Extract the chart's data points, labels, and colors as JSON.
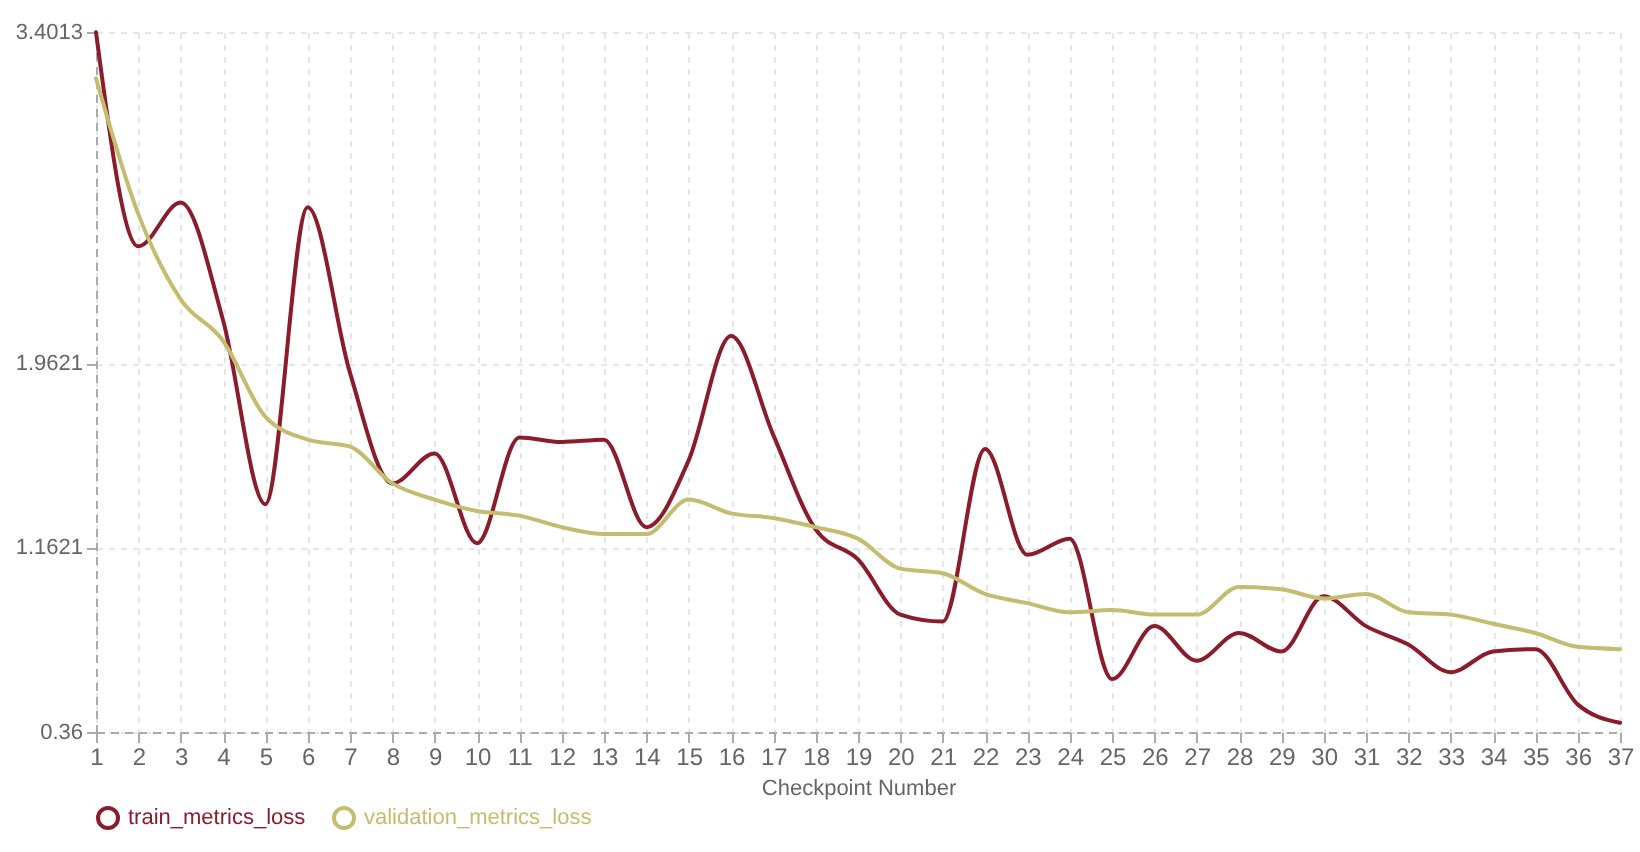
{
  "chart_data": {
    "type": "line",
    "xlabel": "Checkpoint Number",
    "x": [
      1,
      2,
      3,
      4,
      5,
      6,
      7,
      8,
      9,
      10,
      11,
      12,
      13,
      14,
      15,
      16,
      17,
      18,
      19,
      20,
      21,
      22,
      23,
      24,
      25,
      26,
      27,
      28,
      29,
      30,
      31,
      32,
      33,
      34,
      35,
      36,
      37
    ],
    "series": [
      {
        "name": "train_metrics_loss",
        "color": "#8b1c2c",
        "values": [
          3.4,
          2.47,
          2.66,
          2.15,
          1.35,
          2.64,
          1.92,
          1.44,
          1.57,
          1.18,
          1.64,
          1.62,
          1.63,
          1.25,
          1.54,
          2.08,
          1.65,
          1.24,
          1.11,
          0.87,
          0.84,
          1.59,
          1.13,
          1.2,
          0.59,
          0.82,
          0.67,
          0.79,
          0.71,
          0.95,
          0.82,
          0.74,
          0.62,
          0.71,
          0.72,
          0.48,
          0.4
        ]
      },
      {
        "name": "validation_metrics_loss",
        "color": "#c4bc6e",
        "values": [
          3.2,
          2.61,
          2.24,
          2.06,
          1.73,
          1.63,
          1.6,
          1.44,
          1.37,
          1.32,
          1.3,
          1.25,
          1.22,
          1.22,
          1.37,
          1.31,
          1.29,
          1.25,
          1.2,
          1.07,
          1.05,
          0.96,
          0.92,
          0.88,
          0.89,
          0.87,
          0.87,
          0.99,
          0.98,
          0.94,
          0.96,
          0.88,
          0.87,
          0.83,
          0.79,
          0.73,
          0.72
        ]
      }
    ],
    "xlim": [
      1,
      37
    ],
    "xticks": [
      1,
      2,
      3,
      4,
      5,
      6,
      7,
      8,
      9,
      10,
      11,
      12,
      13,
      14,
      15,
      16,
      17,
      18,
      19,
      20,
      21,
      22,
      23,
      24,
      25,
      26,
      27,
      28,
      29,
      30,
      31,
      32,
      33,
      34,
      35,
      36,
      37
    ],
    "ylim": [
      0.36,
      3.4013
    ],
    "yticks": [
      0.36,
      1.1621,
      1.9621,
      3.4013
    ],
    "grid": true,
    "legend": "bottom",
    "marker": "none",
    "line_style": "solid"
  }
}
